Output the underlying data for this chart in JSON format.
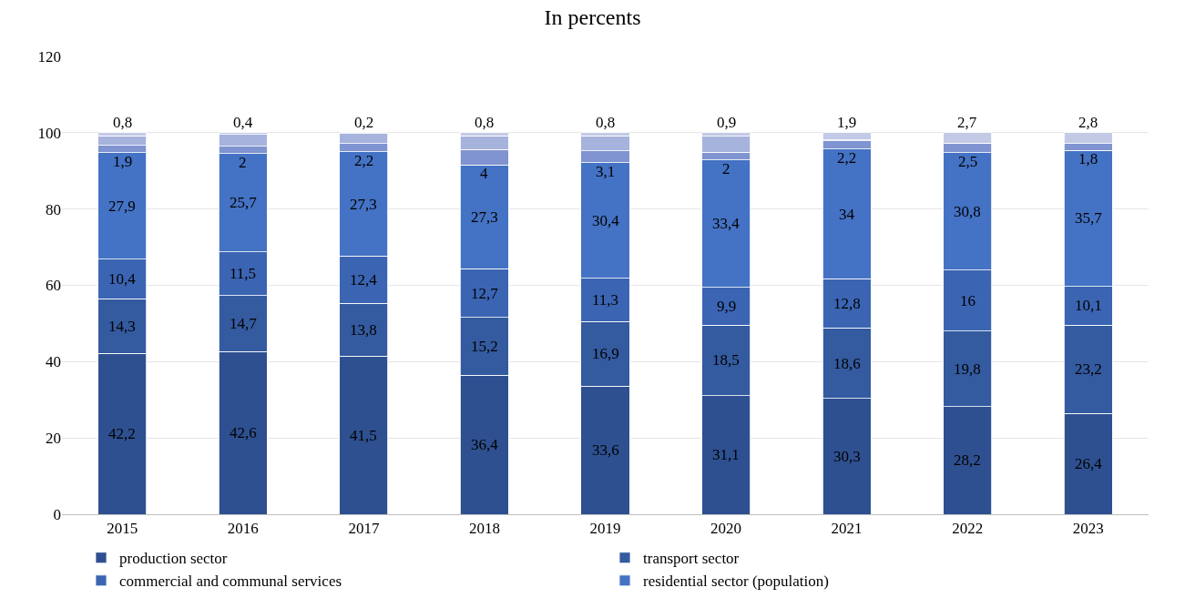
{
  "chart_data": {
    "type": "bar",
    "stacked": true,
    "title": "In percents",
    "categories": [
      "2015",
      "2016",
      "2017",
      "2018",
      "2019",
      "2020",
      "2021",
      "2022",
      "2023"
    ],
    "series": [
      {
        "name": "production sector",
        "color": "#2e5090",
        "values": [
          42.2,
          42.6,
          41.5,
          36.4,
          33.6,
          31.1,
          30.3,
          28.2,
          26.4
        ],
        "value_labels": [
          "42,2",
          "42,6",
          "41,5",
          "36,4",
          "33,6",
          "31,1",
          "30,3",
          "28,2",
          "26,4"
        ]
      },
      {
        "name": "transport sector",
        "color": "#345a9f",
        "values": [
          14.3,
          14.7,
          13.8,
          15.2,
          16.9,
          18.5,
          18.6,
          19.8,
          23.2
        ],
        "value_labels": [
          "14,3",
          "14,7",
          "13,8",
          "15,2",
          "16,9",
          "18,5",
          "18,6",
          "19,8",
          "23,2"
        ]
      },
      {
        "name": "commercial and communal services",
        "color": "#3b65b3",
        "values": [
          10.4,
          11.5,
          12.4,
          12.7,
          11.3,
          9.9,
          12.8,
          16,
          10.1
        ],
        "value_labels": [
          "10,4",
          "11,5",
          "12,4",
          "12,7",
          "11,3",
          "9,9",
          "12,8",
          "16",
          "10,1"
        ]
      },
      {
        "name": "residential sector (population)",
        "color": "#4472c4",
        "values": [
          27.9,
          25.7,
          27.3,
          27.3,
          30.4,
          33.4,
          34,
          30.8,
          35.7
        ],
        "value_labels": [
          "27,9",
          "25,7",
          "27,3",
          "27,3",
          "30,4",
          "33,4",
          "34",
          "30,8",
          "35,7"
        ]
      },
      {
        "color": "#7f94d0",
        "values": [
          1.9,
          2,
          2.2,
          4,
          3.1,
          2,
          2.2,
          2.5,
          1.8
        ],
        "value_labels": [
          "1,9",
          "2",
          "2,2",
          "4",
          "3,1",
          "2",
          "2,2",
          "2,5",
          "1,8"
        ]
      },
      {
        "color": "#a6b3dc",
        "values": [
          2.5,
          3.1,
          2.6,
          3.6,
          3.9,
          4.2,
          0.2,
          0,
          0
        ]
      },
      {
        "color": "#c3cae6",
        "values": [
          0.8,
          0.4,
          0.2,
          0.8,
          0.8,
          0.9,
          1.9,
          2.7,
          2.8
        ],
        "value_labels": [
          "0,8",
          "0,4",
          "0,2",
          "0,8",
          "0,8",
          "0,9",
          "1,9",
          "2,7",
          "2,8"
        ]
      }
    ],
    "ylim": [
      0,
      120
    ],
    "yticks": [
      0,
      20,
      40,
      60,
      80,
      100,
      120
    ],
    "grid": "y",
    "legend": "bottom"
  }
}
